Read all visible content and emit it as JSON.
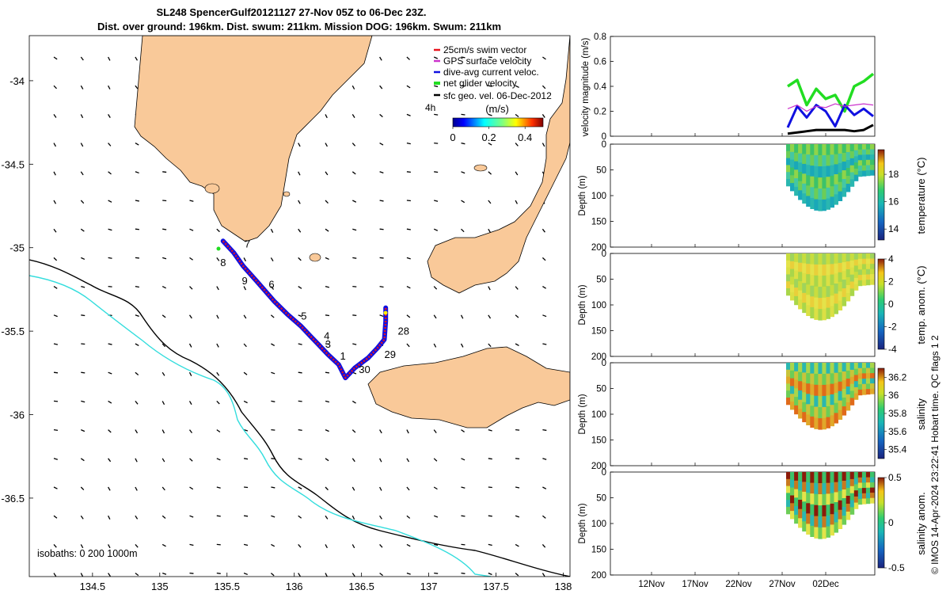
{
  "title": {
    "line1": "SL248 SpencerGulf20121127 27-Nov 05Z to 06-Dec 23Z.",
    "line2": "Dist. over ground: 196km. Dist. swum: 211km. Mission DOG: 196km. Swum: 211km"
  },
  "colors": {
    "land": "#f9c999",
    "swim_vector": "#e8141e",
    "gps_velocity": "#cc33cc",
    "current": "#1010e0",
    "net_velocity": "#22dd22",
    "geostrophic": "#000000",
    "isobath_200": "#000000",
    "isobath_1000": "#33dddd"
  },
  "map": {
    "xlim": [
      134.03,
      138.05
    ],
    "ylim": [
      -36.97,
      -33.73
    ],
    "xticks": [
      "134.5",
      "135",
      "135.5",
      "136",
      "136.5",
      "137",
      "137.5",
      "138"
    ],
    "yticks": [
      "-34",
      "-34.5",
      "-35",
      "-35.5",
      "-36",
      "-36.5"
    ],
    "legend": [
      {
        "label": "25cm/s swim vector",
        "color": "#e8141e"
      },
      {
        "label": "GPS surface velocity",
        "color": "#cc33cc"
      },
      {
        "label": "dive-avg current veloc.",
        "color": "#1010e0"
      },
      {
        "label": "net glider velocity",
        "color": "#22dd22"
      },
      {
        "label": "sfc geo. vel. 06-Dec-2012",
        "color": "#000000"
      }
    ],
    "time_tag": "4h",
    "colorbar": {
      "label": "(m/s)",
      "ticks": [
        "0",
        "0.2",
        "0.4"
      ],
      "range": [
        0,
        0.5
      ]
    },
    "isobath_label": "isobaths: 0   200  1000m",
    "day_labels": [
      {
        "text": "7",
        "lon": 135.63,
        "lat": -35.0
      },
      {
        "text": "8",
        "lon": 135.45,
        "lat": -35.11
      },
      {
        "text": "9",
        "lon": 135.61,
        "lat": -35.22
      },
      {
        "text": "6",
        "lon": 135.81,
        "lat": -35.24
      },
      {
        "text": "5",
        "lon": 136.05,
        "lat": -35.43
      },
      {
        "text": "4",
        "lon": 136.22,
        "lat": -35.55
      },
      {
        "text": "3",
        "lon": 136.23,
        "lat": -35.6
      },
      {
        "text": "1",
        "lon": 136.34,
        "lat": -35.67
      },
      {
        "text": "30",
        "lon": 136.48,
        "lat": -35.75
      },
      {
        "text": "29",
        "lon": 136.67,
        "lat": -35.66
      },
      {
        "text": "28",
        "lon": 136.77,
        "lat": -35.52
      }
    ],
    "track": [
      [
        135.47,
        -34.96
      ],
      [
        135.55,
        -35.03
      ],
      [
        135.62,
        -35.11
      ],
      [
        135.72,
        -35.2
      ],
      [
        135.85,
        -35.32
      ],
      [
        135.95,
        -35.4
      ],
      [
        136.05,
        -35.47
      ],
      [
        136.12,
        -35.53
      ],
      [
        136.18,
        -35.58
      ],
      [
        136.25,
        -35.64
      ],
      [
        136.33,
        -35.7
      ],
      [
        136.38,
        -35.78
      ],
      [
        136.45,
        -35.72
      ],
      [
        136.55,
        -35.66
      ],
      [
        136.62,
        -35.6
      ],
      [
        136.67,
        -35.55
      ],
      [
        136.68,
        -35.44
      ],
      [
        136.68,
        -35.36
      ]
    ]
  },
  "panels": {
    "time_ticks": [
      "12Nov",
      "17Nov",
      "22Nov",
      "27Nov",
      "02Dec"
    ],
    "velocity": {
      "ylabel": "velocity magnitude (m/s)",
      "ylim": [
        0,
        0.8
      ],
      "yticks": [
        "0",
        "0.2",
        "0.4",
        "0.6",
        "0.8"
      ]
    },
    "sections": [
      {
        "ylabel": "Depth (m)",
        "cbar_label": "temperature (°C)",
        "cbar_ticks": [
          "14",
          "16",
          "18"
        ],
        "range": [
          13.2,
          19.8
        ]
      },
      {
        "ylabel": "Depth (m)",
        "cbar_label": "temp. anom. (°C)",
        "cbar_ticks": [
          "-4",
          "-2",
          "0",
          "2",
          "4"
        ],
        "range": [
          -4,
          4
        ]
      },
      {
        "ylabel": "Depth (m)",
        "cbar_label": "salinity",
        "cbar_ticks": [
          "35.4",
          "35.6",
          "35.8",
          "36",
          "36.2"
        ],
        "range": [
          35.3,
          36.3
        ]
      },
      {
        "ylabel": "Depth (m)",
        "cbar_label": "salinity anom.",
        "cbar_ticks": [
          "-0.5",
          "0",
          "0.5"
        ],
        "range": [
          -0.5,
          0.5
        ]
      }
    ],
    "depth_ticks": [
      "0",
      "50",
      "100",
      "150",
      "200"
    ],
    "footer": "© IMOS 14-Apr-2024 23:22:41 Hobart time. QC flags 1  2"
  },
  "chart_data": [
    {
      "type": "scatter",
      "title": "SL248 SpencerGulf20121127 27-Nov 05Z to 06-Dec 23Z.",
      "subtitle": "Dist. over ground: 196km. Dist. swum: 211km. Mission DOG: 196km. Swum: 211km",
      "xlim": [
        134.03,
        138.05
      ],
      "ylim": [
        -36.97,
        -33.73
      ],
      "series": [
        {
          "name": "25cm/s swim vector"
        },
        {
          "name": "GPS surface velocity"
        },
        {
          "name": "dive-avg current veloc."
        },
        {
          "name": "net glider velocity"
        },
        {
          "name": "sfc geo. vel. 06-Dec-2012"
        }
      ],
      "legend": "top-right"
    },
    {
      "type": "line",
      "ylabel": "velocity magnitude (m/s)",
      "ylim": [
        0,
        0.8
      ],
      "x": [
        "27Nov",
        "28Nov",
        "29Nov",
        "30Nov",
        "01Dec",
        "02Dec",
        "03Dec",
        "04Dec",
        "05Dec",
        "06Dec"
      ],
      "series": [
        {
          "name": "net glider velocity",
          "values": [
            0.4,
            0.45,
            0.25,
            0.38,
            0.3,
            0.33,
            0.2,
            0.4,
            0.44,
            0.5
          ]
        },
        {
          "name": "dive-avg current veloc.",
          "values": [
            0.07,
            0.24,
            0.15,
            0.25,
            0.2,
            0.08,
            0.25,
            0.17,
            0.22,
            0.16
          ]
        },
        {
          "name": "GPS surface velocity",
          "values": [
            0.22,
            0.25,
            0.2,
            0.24,
            0.23,
            0.26,
            0.24,
            0.25,
            0.26,
            0.25
          ]
        },
        {
          "name": "sfc geo. vel. 06-Dec-2012",
          "values": [
            0.02,
            0.03,
            0.04,
            0.05,
            0.05,
            0.05,
            0.05,
            0.04,
            0.05,
            0.09
          ]
        }
      ]
    }
  ]
}
